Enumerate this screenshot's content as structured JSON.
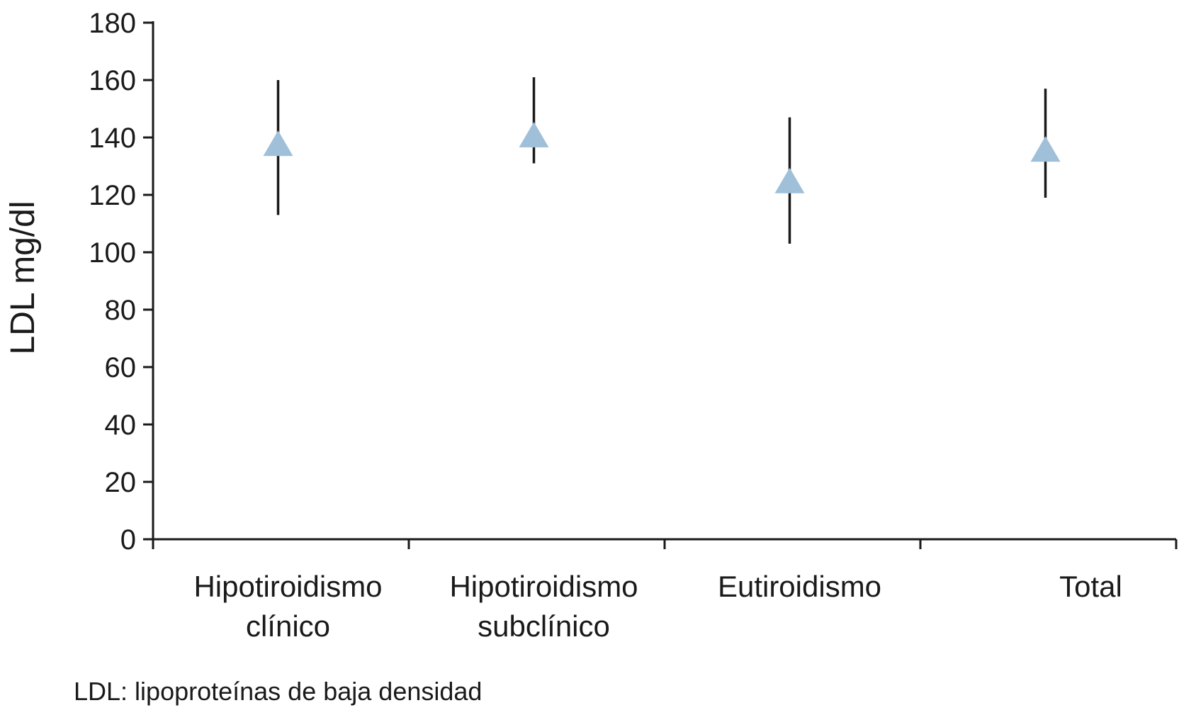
{
  "chart_data": {
    "type": "scatter",
    "ylabel": "LDL mg/dl",
    "xlabel": "",
    "ylim": [
      0,
      180
    ],
    "yticks": [
      "0",
      "20",
      "40",
      "60",
      "80",
      "100",
      "120",
      "140",
      "160",
      "180"
    ],
    "categories": [
      [
        "Hipotiroidismo",
        "clínico"
      ],
      [
        "Hipotiroidismo",
        "subclínico"
      ],
      [
        "Eutiroidismo"
      ],
      [
        "Total"
      ]
    ],
    "series": [
      {
        "marker": "triangle",
        "color": "#9fc0d8",
        "values": [
          138,
          141,
          125,
          136
        ],
        "error_low": [
          113,
          131,
          103,
          119
        ],
        "error_high": [
          160,
          161,
          147,
          157
        ]
      }
    ],
    "grid": false,
    "legend": "none",
    "footnote": "LDL: lipoproteínas de baja densidad"
  }
}
